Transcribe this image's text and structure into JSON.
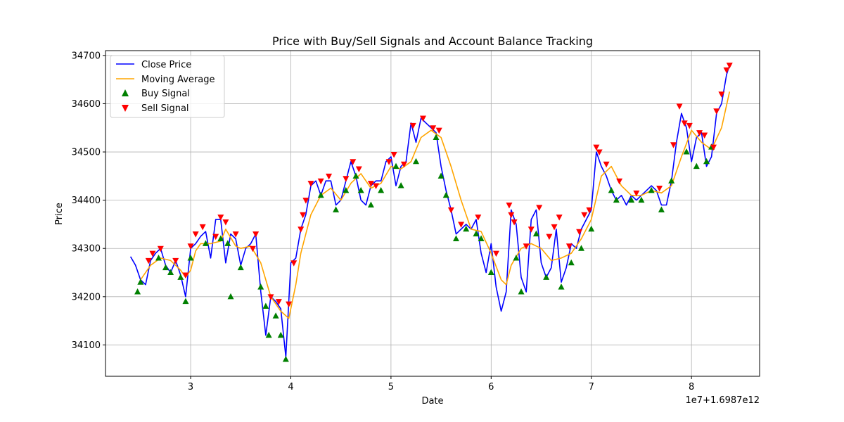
{
  "chart_data": {
    "type": "line",
    "title": "Price with Buy/Sell Signals and Account Balance Tracking",
    "xlabel": "Date",
    "ylabel": "Price",
    "x_offset_label": "1e7+1.6987e12",
    "xlim": [
      2.15,
      8.68
    ],
    "ylim": [
      34035,
      34710
    ],
    "x_ticks": [
      3,
      4,
      5,
      6,
      7,
      8
    ],
    "y_ticks": [
      34100,
      34200,
      34300,
      34400,
      34500,
      34600,
      34700
    ],
    "grid": true,
    "legend_position": "top-left",
    "colors": {
      "close": "#0000ff",
      "ma": "#ffa500",
      "buy": "#008000",
      "sell": "#ff0000"
    },
    "series": [
      {
        "name": "Close Price",
        "x": [
          2.4,
          2.45,
          2.5,
          2.55,
          2.6,
          2.65,
          2.7,
          2.75,
          2.8,
          2.85,
          2.9,
          2.95,
          3.0,
          3.05,
          3.1,
          3.15,
          3.2,
          3.25,
          3.3,
          3.35,
          3.4,
          3.45,
          3.5,
          3.55,
          3.6,
          3.65,
          3.7,
          3.75,
          3.8,
          3.85,
          3.9,
          3.95,
          4.0,
          4.05,
          4.1,
          4.15,
          4.2,
          4.25,
          4.3,
          4.35,
          4.4,
          4.45,
          4.5,
          4.55,
          4.6,
          4.65,
          4.7,
          4.75,
          4.8,
          4.85,
          4.9,
          4.95,
          5.0,
          5.05,
          5.1,
          5.15,
          5.2,
          5.25,
          5.3,
          5.35,
          5.4,
          5.45,
          5.5,
          5.55,
          5.6,
          5.65,
          5.7,
          5.75,
          5.8,
          5.85,
          5.9,
          5.95,
          6.0,
          6.05,
          6.1,
          6.15,
          6.2,
          6.25,
          6.3,
          6.35,
          6.4,
          6.45,
          6.5,
          6.55,
          6.6,
          6.65,
          6.7,
          6.75,
          6.8,
          6.85,
          6.9,
          6.95,
          7.0,
          7.05,
          7.1,
          7.15,
          7.2,
          7.25,
          7.3,
          7.35,
          7.4,
          7.45,
          7.5,
          7.55,
          7.6,
          7.65,
          7.7,
          7.75,
          7.8,
          7.85,
          7.9,
          7.95,
          8.0,
          8.05,
          8.1,
          8.15,
          8.2,
          8.25,
          8.3,
          8.35,
          8.38
        ],
        "values": [
          34283,
          34265,
          34235,
          34225,
          34275,
          34290,
          34300,
          34265,
          34250,
          34275,
          34245,
          34200,
          34300,
          34310,
          34325,
          34335,
          34280,
          34360,
          34360,
          34270,
          34330,
          34320,
          34265,
          34300,
          34310,
          34330,
          34210,
          34120,
          34200,
          34190,
          34175,
          34075,
          34270,
          34280,
          34340,
          34370,
          34430,
          34440,
          34410,
          34440,
          34440,
          34390,
          34400,
          34440,
          34480,
          34450,
          34400,
          34390,
          34430,
          34440,
          34440,
          34480,
          34490,
          34430,
          34470,
          34480,
          34560,
          34520,
          34570,
          34560,
          34550,
          34540,
          34470,
          34420,
          34380,
          34330,
          34340,
          34350,
          34340,
          34360,
          34290,
          34250,
          34310,
          34220,
          34170,
          34210,
          34380,
          34350,
          34240,
          34210,
          34360,
          34380,
          34270,
          34240,
          34260,
          34340,
          34230,
          34260,
          34310,
          34300,
          34340,
          34360,
          34380,
          34500,
          34470,
          34450,
          34420,
          34400,
          34410,
          34390,
          34410,
          34400,
          34410,
          34420,
          34430,
          34420,
          34390,
          34390,
          34440,
          34520,
          34580,
          34550,
          34480,
          34530,
          34540,
          34470,
          34490,
          34580,
          34600,
          34660,
          34680
        ]
      },
      {
        "name": "Moving Average",
        "x": [
          2.5,
          2.6,
          2.7,
          2.8,
          2.9,
          2.95,
          3.0,
          3.05,
          3.1,
          3.2,
          3.3,
          3.35,
          3.45,
          3.5,
          3.6,
          3.7,
          3.8,
          3.9,
          3.98,
          4.05,
          4.1,
          4.15,
          4.2,
          4.3,
          4.4,
          4.5,
          4.6,
          4.7,
          4.8,
          4.9,
          5.0,
          5.1,
          5.2,
          5.3,
          5.4,
          5.5,
          5.6,
          5.7,
          5.8,
          5.9,
          6.0,
          6.1,
          6.15,
          6.2,
          6.3,
          6.4,
          6.5,
          6.6,
          6.7,
          6.8,
          6.9,
          7.0,
          7.1,
          7.2,
          7.3,
          7.4,
          7.5,
          7.6,
          7.7,
          7.8,
          7.9,
          8.0,
          8.1,
          8.2,
          8.3,
          8.38
        ],
        "values": [
          34235,
          34265,
          34280,
          34275,
          34255,
          34240,
          34255,
          34295,
          34310,
          34310,
          34315,
          34340,
          34305,
          34300,
          34305,
          34270,
          34200,
          34170,
          34155,
          34225,
          34290,
          34330,
          34370,
          34410,
          34425,
          34400,
          34435,
          34455,
          34425,
          34435,
          34470,
          34465,
          34480,
          34530,
          34545,
          34530,
          34470,
          34400,
          34340,
          34335,
          34290,
          34235,
          34225,
          34265,
          34300,
          34310,
          34300,
          34275,
          34280,
          34290,
          34320,
          34360,
          34450,
          34470,
          34430,
          34410,
          34410,
          34420,
          34415,
          34430,
          34490,
          34545,
          34520,
          34505,
          34550,
          34625
        ]
      }
    ],
    "buy_signals": {
      "name": "Buy Signal",
      "x": [
        2.47,
        2.5,
        2.68,
        2.75,
        2.8,
        2.9,
        2.95,
        3.0,
        3.15,
        3.3,
        3.37,
        3.4,
        3.5,
        3.7,
        3.75,
        3.78,
        3.85,
        3.9,
        3.95,
        4.3,
        4.45,
        4.55,
        4.65,
        4.7,
        4.8,
        4.9,
        5.05,
        5.1,
        5.25,
        5.45,
        5.5,
        5.55,
        5.65,
        5.75,
        5.85,
        5.9,
        6.0,
        6.25,
        6.3,
        6.45,
        6.55,
        6.7,
        6.8,
        6.9,
        7.0,
        7.2,
        7.25,
        7.4,
        7.5,
        7.6,
        7.7,
        7.8,
        7.95,
        8.05,
        8.15,
        8.2
      ],
      "values": [
        34210,
        34230,
        34280,
        34260,
        34250,
        34240,
        34190,
        34280,
        34310,
        34320,
        34310,
        34200,
        34260,
        34220,
        34180,
        34120,
        34160,
        34120,
        34070,
        34410,
        34380,
        34420,
        34450,
        34420,
        34390,
        34420,
        34470,
        34430,
        34480,
        34530,
        34450,
        34410,
        34320,
        34340,
        34330,
        34320,
        34250,
        34280,
        34210,
        34330,
        34240,
        34220,
        34270,
        34300,
        34340,
        34420,
        34400,
        34400,
        34400,
        34420,
        34380,
        34440,
        34500,
        34470,
        34480,
        34510
      ]
    },
    "sell_signals": {
      "name": "Sell Signal",
      "x": [
        2.58,
        2.62,
        2.7,
        2.85,
        2.95,
        3.0,
        3.05,
        3.12,
        3.25,
        3.3,
        3.35,
        3.45,
        3.62,
        3.65,
        3.8,
        3.88,
        3.98,
        4.03,
        4.1,
        4.12,
        4.15,
        4.2,
        4.3,
        4.38,
        4.55,
        4.62,
        4.68,
        4.8,
        4.85,
        4.98,
        5.03,
        5.13,
        5.22,
        5.32,
        5.42,
        5.48,
        5.6,
        5.7,
        5.87,
        6.05,
        6.18,
        6.2,
        6.23,
        6.35,
        6.4,
        6.48,
        6.58,
        6.63,
        6.68,
        6.78,
        6.88,
        6.93,
        6.98,
        7.05,
        7.08,
        7.15,
        7.28,
        7.45,
        7.68,
        7.82,
        7.88,
        7.93,
        7.98,
        8.08,
        8.13,
        8.22,
        8.25,
        8.3,
        8.35,
        8.38
      ],
      "values": [
        34275,
        34290,
        34300,
        34275,
        34245,
        34305,
        34330,
        34345,
        34325,
        34365,
        34355,
        34330,
        34300,
        34330,
        34200,
        34190,
        34185,
        34270,
        34340,
        34370,
        34400,
        34435,
        34440,
        34450,
        34445,
        34480,
        34465,
        34435,
        34430,
        34480,
        34495,
        34475,
        34555,
        34570,
        34550,
        34545,
        34380,
        34350,
        34365,
        34290,
        34390,
        34370,
        34355,
        34305,
        34340,
        34385,
        34325,
        34345,
        34365,
        34305,
        34335,
        34370,
        34380,
        34510,
        34500,
        34475,
        34440,
        34415,
        34425,
        34515,
        34595,
        34560,
        34555,
        34540,
        34535,
        34510,
        34585,
        34620,
        34670,
        34680
      ]
    }
  }
}
